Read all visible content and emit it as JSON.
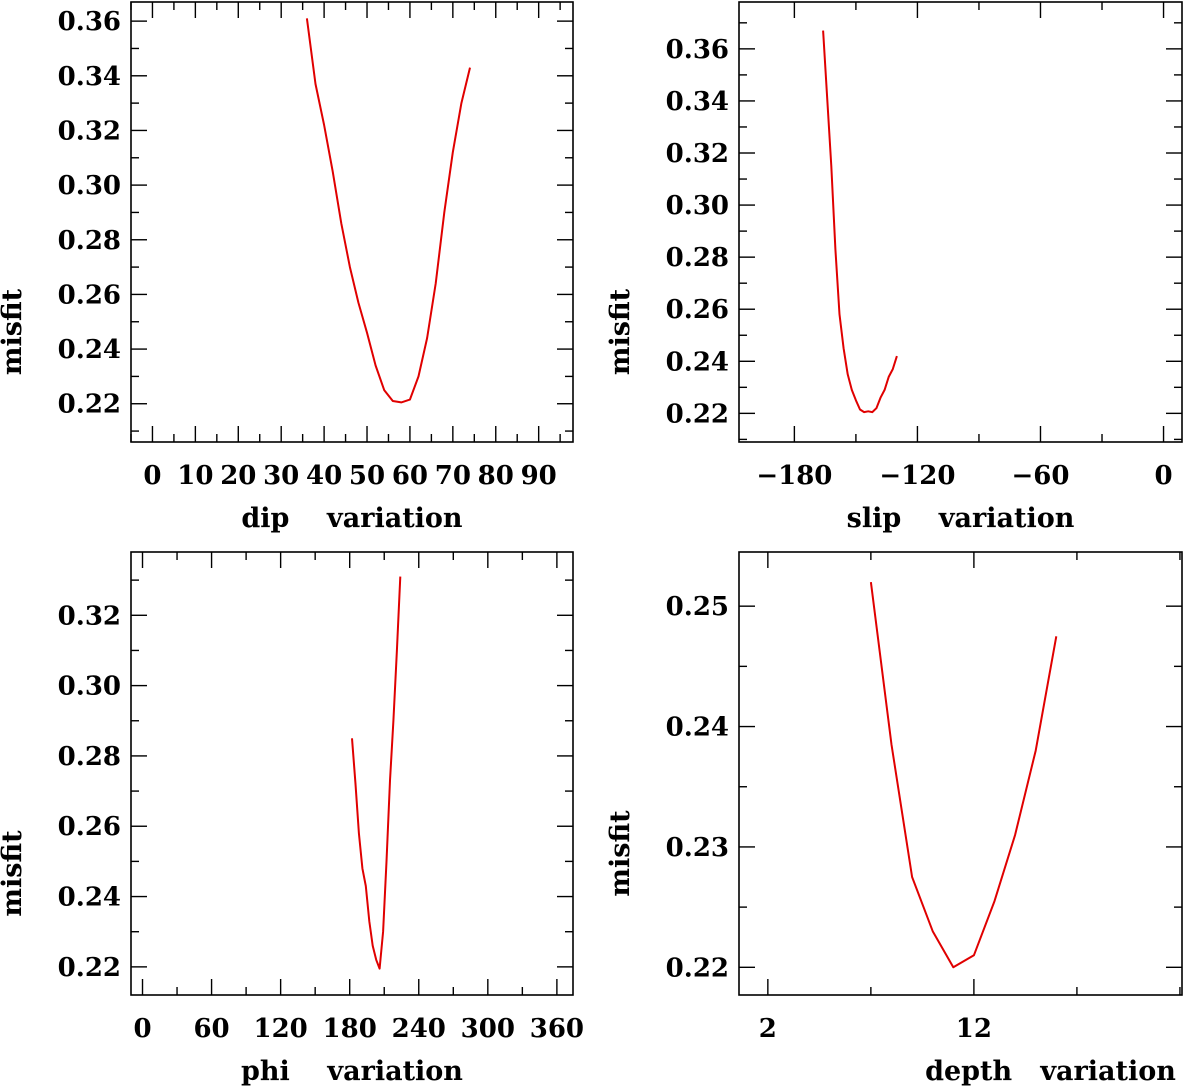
{
  "chart_data": [
    {
      "type": "line",
      "xlabel": "dip    variation",
      "ylabel": "misfit",
      "xlim": [
        -5,
        98
      ],
      "ylim": [
        0.206,
        0.367
      ],
      "xticks": [
        0,
        10,
        20,
        30,
        40,
        50,
        60,
        70,
        80,
        90
      ],
      "xtick_labels": [
        "0",
        "10",
        "20",
        "30",
        "40",
        "50",
        "60",
        "70",
        "80",
        "90"
      ],
      "yticks": [
        0.22,
        0.24,
        0.26,
        0.28,
        0.3,
        0.32,
        0.34,
        0.36
      ],
      "ytick_labels": [
        "0.22",
        "0.24",
        "0.26",
        "0.28",
        "0.30",
        "0.32",
        "0.34",
        "0.36"
      ],
      "series": [
        {
          "color": "#e00000",
          "x": [
            36,
            38,
            40,
            42,
            44,
            46,
            48,
            50,
            52,
            54,
            56,
            58,
            60,
            62,
            64,
            66,
            68,
            70,
            72,
            74
          ],
          "y": [
            0.361,
            0.337,
            0.322,
            0.305,
            0.286,
            0.27,
            0.257,
            0.246,
            0.234,
            0.225,
            0.221,
            0.2205,
            0.2215,
            0.23,
            0.244,
            0.264,
            0.29,
            0.312,
            0.33,
            0.343
          ]
        }
      ]
    },
    {
      "type": "line",
      "xlabel": "slip    variation",
      "ylabel": "misfit",
      "xlim": [
        -207,
        9
      ],
      "ylim": [
        0.209,
        0.378
      ],
      "xticks": [
        -180,
        -120,
        -60,
        0
      ],
      "xtick_labels": [
        "−180",
        "−120",
        "−60",
        "0"
      ],
      "yticks": [
        0.22,
        0.24,
        0.26,
        0.28,
        0.3,
        0.32,
        0.34,
        0.36
      ],
      "ytick_labels": [
        "0.22",
        "0.24",
        "0.26",
        "0.28",
        "0.30",
        "0.32",
        "0.34",
        "0.36"
      ],
      "series": [
        {
          "color": "#e00000",
          "x": [
            -166,
            -162,
            -160,
            -158,
            -156,
            -154,
            -152,
            -150,
            -148,
            -146,
            -144,
            -142,
            -140,
            -138,
            -136,
            -134,
            -132,
            -130
          ],
          "y": [
            0.367,
            0.315,
            0.283,
            0.258,
            0.245,
            0.235,
            0.229,
            0.225,
            0.2215,
            0.2205,
            0.2208,
            0.2205,
            0.222,
            0.226,
            0.229,
            0.234,
            0.237,
            0.242
          ]
        }
      ]
    },
    {
      "type": "line",
      "xlabel": "phi    variation",
      "ylabel": "misfit",
      "xlim": [
        -10,
        374
      ],
      "ylim": [
        0.212,
        0.338
      ],
      "xticks": [
        0,
        60,
        120,
        180,
        240,
        300,
        360
      ],
      "xtick_labels": [
        "0",
        "60",
        "120",
        "180",
        "240",
        "300",
        "360"
      ],
      "yticks": [
        0.22,
        0.24,
        0.26,
        0.28,
        0.3,
        0.32
      ],
      "ytick_labels": [
        "0.22",
        "0.24",
        "0.26",
        "0.28",
        "0.30",
        "0.32"
      ],
      "series": [
        {
          "color": "#e00000",
          "x": [
            182,
            185,
            188,
            191,
            194,
            197,
            200,
            203,
            206,
            209,
            212,
            215,
            218,
            221,
            224
          ],
          "y": [
            0.285,
            0.272,
            0.258,
            0.248,
            0.243,
            0.233,
            0.226,
            0.222,
            0.2195,
            0.23,
            0.25,
            0.273,
            0.29,
            0.31,
            0.331
          ]
        }
      ]
    },
    {
      "type": "line",
      "xlabel": "depth   variation",
      "ylabel": "misfit",
      "xlim": [
        0.6,
        22.1
      ],
      "ylim": [
        0.2177,
        0.2545
      ],
      "xticks": [
        2,
        12
      ],
      "xtick_labels": [
        "2",
        "12"
      ],
      "yticks": [
        0.22,
        0.23,
        0.24,
        0.25
      ],
      "ytick_labels": [
        "0.22",
        "0.23",
        "0.24",
        "0.25"
      ],
      "series": [
        {
          "color": "#e00000",
          "x": [
            7,
            8,
            9,
            10,
            11,
            12,
            13,
            14,
            15,
            16
          ],
          "y": [
            0.252,
            0.2385,
            0.2275,
            0.223,
            0.22,
            0.221,
            0.2255,
            0.231,
            0.238,
            0.2475
          ]
        }
      ]
    }
  ]
}
